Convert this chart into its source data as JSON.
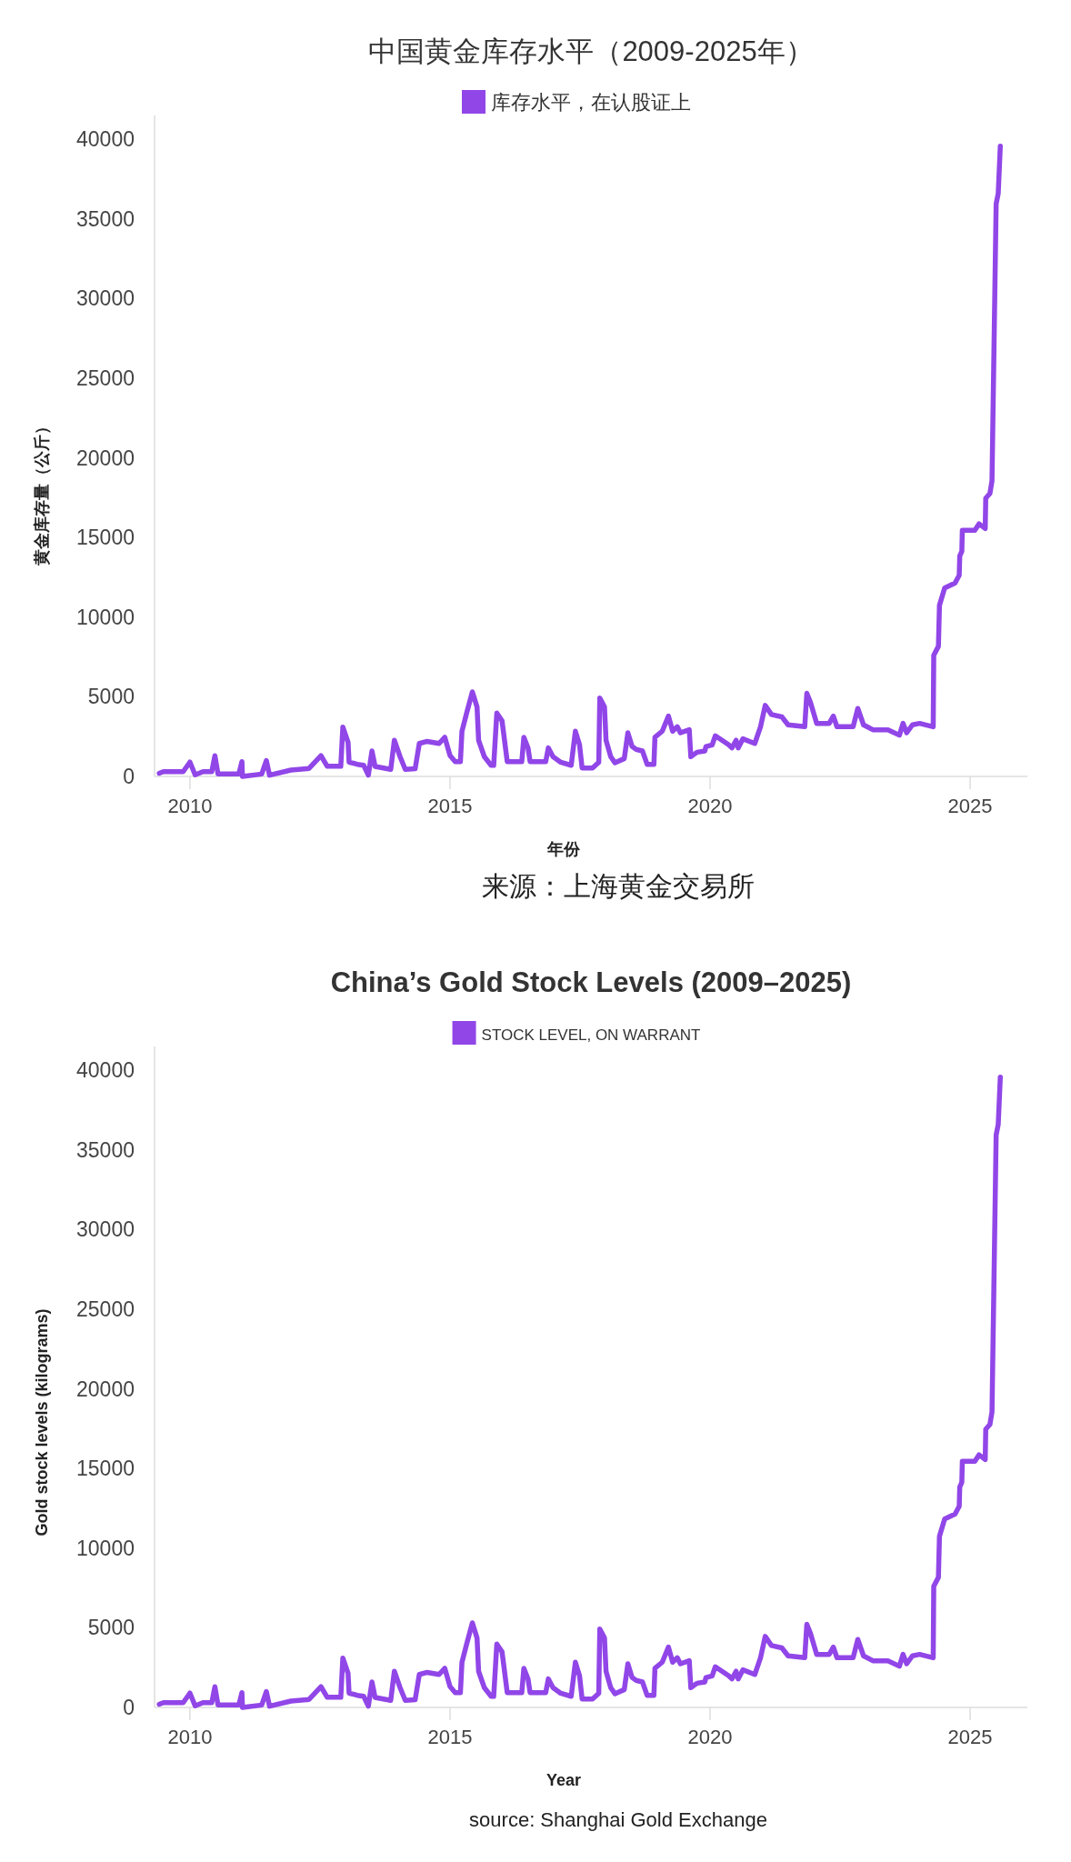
{
  "chart_data": [
    {
      "type": "line",
      "title": "中国黄金库存水平（2009-2025年）",
      "xlabel": "年份",
      "ylabel": "黄金库存量（公斤）",
      "annotations": [
        "来源：上海黄金交易所"
      ],
      "legend": "top",
      "xlim": [
        2009.32,
        2026.1
      ],
      "ylim": [
        0,
        41500
      ],
      "xticks": [
        2010,
        2015,
        2020,
        2025
      ],
      "yticks": [
        0,
        5000,
        10000,
        15000,
        20000,
        25000,
        30000,
        35000,
        40000
      ],
      "series": [
        {
          "name": "库存水平，在认股证上",
          "color": "#9146e8",
          "x": [
            2009.41,
            2009.49,
            2009.87,
            2010.0,
            2010.1,
            2010.25,
            2010.42,
            2010.48,
            2010.54,
            2010.94,
            2011.0,
            2011.01,
            2011.38,
            2011.47,
            2011.53,
            2011.94,
            2012.29,
            2012.52,
            2012.64,
            2012.9,
            2012.94,
            2013.04,
            2013.06,
            2013.22,
            2013.34,
            2013.43,
            2013.5,
            2013.56,
            2013.86,
            2013.93,
            2014.04,
            2014.14,
            2014.33,
            2014.41,
            2014.56,
            2014.79,
            2014.9,
            2015.0,
            2015.1,
            2015.2,
            2015.23,
            2015.32,
            2015.43,
            2015.52,
            2015.55,
            2015.66,
            2015.79,
            2015.84,
            2015.9,
            2016.0,
            2016.1,
            2016.38,
            2016.42,
            2016.5,
            2016.54,
            2016.84,
            2016.89,
            2016.98,
            2017.13,
            2017.33,
            2017.41,
            2017.49,
            2017.54,
            2017.74,
            2017.86,
            2017.88,
            2017.97,
            2018.0,
            2018.09,
            2018.17,
            2018.35,
            2018.42,
            2018.5,
            2018.58,
            2018.7,
            2018.79,
            2018.92,
            2018.94,
            2019.08,
            2019.2,
            2019.28,
            2019.37,
            2019.43,
            2019.6,
            2019.63,
            2019.75,
            2019.9,
            2019.92,
            2020.04,
            2020.1,
            2020.36,
            2020.42,
            2020.5,
            2020.54,
            2020.63,
            2020.86,
            2020.97,
            2021.06,
            2021.18,
            2021.38,
            2021.5,
            2021.82,
            2021.86,
            2021.93,
            2022.05,
            2022.29,
            2022.37,
            2022.44,
            2022.75,
            2022.84,
            2022.95,
            2023.13,
            2023.42,
            2023.64,
            2023.71,
            2023.78,
            2023.89,
            2024.03,
            2024.29,
            2024.3,
            2024.39,
            2024.41,
            2024.51,
            2024.71,
            2024.79,
            2024.8,
            2024.84,
            2024.85,
            2025.09,
            2025.17,
            2025.29,
            2025.3,
            2025.38,
            2025.42,
            2025.5,
            2025.54,
            2025.58
          ],
          "values": [
            200,
            300,
            300,
            900,
            100,
            300,
            300,
            1300,
            150,
            150,
            930,
            0,
            150,
            1000,
            80,
            400,
            500,
            1300,
            640,
            640,
            3100,
            2150,
            900,
            760,
            700,
            80,
            1600,
            630,
            440,
            2270,
            1240,
            440,
            480,
            2070,
            2200,
            2070,
            2460,
            1310,
            930,
            930,
            2840,
            3980,
            5310,
            4360,
            2270,
            1240,
            700,
            700,
            3980,
            3500,
            930,
            930,
            2460,
            1790,
            930,
            930,
            1790,
            1240,
            890,
            700,
            2840,
            2000,
            530,
            530,
            890,
            4930,
            4360,
            2270,
            1240,
            860,
            1120,
            2740,
            1880,
            1700,
            1600,
            760,
            760,
            2460,
            2840,
            3790,
            2840,
            3120,
            2740,
            2930,
            1240,
            1520,
            1600,
            1880,
            1980,
            2550,
            1980,
            1790,
            2270,
            1790,
            2360,
            2070,
            3120,
            4460,
            3890,
            3740,
            3240,
            3120,
            5220,
            4650,
            3330,
            3330,
            3790,
            3120,
            3120,
            4270,
            3240,
            2930,
            2930,
            2590,
            3330,
            2740,
            3240,
            3330,
            3120,
            7600,
            8170,
            10740,
            11830,
            12140,
            12630,
            13840,
            14130,
            15460,
            15460,
            15860,
            15570,
            17470,
            17770,
            18550,
            35940,
            36610,
            39580
          ]
        }
      ]
    },
    {
      "type": "line",
      "title": "China’s Gold Stock Levels (2009–2025)",
      "xlabel": "Year",
      "ylabel": "Gold stock levels (kilograms)",
      "annotations": [
        "source: Shanghai Gold Exchange"
      ],
      "legend": "top",
      "xlim": [
        2009.32,
        2026.1
      ],
      "ylim": [
        0,
        41500
      ],
      "xticks": [
        2010,
        2015,
        2020,
        2025
      ],
      "yticks": [
        0,
        5000,
        10000,
        15000,
        20000,
        25000,
        30000,
        35000,
        40000
      ],
      "series": [
        {
          "name": "STOCK LEVEL, ON WARRANT",
          "color": "#9146e8",
          "x": [
            2009.41,
            2009.49,
            2009.87,
            2010.0,
            2010.1,
            2010.25,
            2010.42,
            2010.48,
            2010.54,
            2010.94,
            2011.0,
            2011.01,
            2011.38,
            2011.47,
            2011.53,
            2011.94,
            2012.29,
            2012.52,
            2012.64,
            2012.9,
            2012.94,
            2013.04,
            2013.06,
            2013.22,
            2013.34,
            2013.43,
            2013.5,
            2013.56,
            2013.86,
            2013.93,
            2014.04,
            2014.14,
            2014.33,
            2014.41,
            2014.56,
            2014.79,
            2014.9,
            2015.0,
            2015.1,
            2015.2,
            2015.23,
            2015.32,
            2015.43,
            2015.52,
            2015.55,
            2015.66,
            2015.79,
            2015.84,
            2015.9,
            2016.0,
            2016.1,
            2016.38,
            2016.42,
            2016.5,
            2016.54,
            2016.84,
            2016.89,
            2016.98,
            2017.13,
            2017.33,
            2017.41,
            2017.49,
            2017.54,
            2017.74,
            2017.86,
            2017.88,
            2017.97,
            2018.0,
            2018.09,
            2018.17,
            2018.35,
            2018.42,
            2018.5,
            2018.58,
            2018.7,
            2018.79,
            2018.92,
            2018.94,
            2019.08,
            2019.2,
            2019.28,
            2019.37,
            2019.43,
            2019.6,
            2019.63,
            2019.75,
            2019.9,
            2019.92,
            2020.04,
            2020.1,
            2020.36,
            2020.42,
            2020.5,
            2020.54,
            2020.63,
            2020.86,
            2020.97,
            2021.06,
            2021.18,
            2021.38,
            2021.5,
            2021.82,
            2021.86,
            2021.93,
            2022.05,
            2022.29,
            2022.37,
            2022.44,
            2022.75,
            2022.84,
            2022.95,
            2023.13,
            2023.42,
            2023.64,
            2023.71,
            2023.78,
            2023.89,
            2024.03,
            2024.29,
            2024.3,
            2024.39,
            2024.41,
            2024.51,
            2024.71,
            2024.79,
            2024.8,
            2024.84,
            2024.85,
            2025.09,
            2025.17,
            2025.29,
            2025.3,
            2025.38,
            2025.42,
            2025.5,
            2025.54,
            2025.58
          ],
          "values": [
            200,
            300,
            300,
            900,
            100,
            300,
            300,
            1300,
            150,
            150,
            930,
            0,
            150,
            1000,
            80,
            400,
            500,
            1300,
            640,
            640,
            3100,
            2150,
            900,
            760,
            700,
            80,
            1600,
            630,
            440,
            2270,
            1240,
            440,
            480,
            2070,
            2200,
            2070,
            2460,
            1310,
            930,
            930,
            2840,
            3980,
            5310,
            4360,
            2270,
            1240,
            700,
            700,
            3980,
            3500,
            930,
            930,
            2460,
            1790,
            930,
            930,
            1790,
            1240,
            890,
            700,
            2840,
            2000,
            530,
            530,
            890,
            4930,
            4360,
            2270,
            1240,
            860,
            1120,
            2740,
            1880,
            1700,
            1600,
            760,
            760,
            2460,
            2840,
            3790,
            2840,
            3120,
            2740,
            2930,
            1240,
            1520,
            1600,
            1880,
            1980,
            2550,
            1980,
            1790,
            2270,
            1790,
            2360,
            2070,
            3120,
            4460,
            3890,
            3740,
            3240,
            3120,
            5220,
            4650,
            3330,
            3330,
            3790,
            3120,
            3120,
            4270,
            3240,
            2930,
            2930,
            2590,
            3330,
            2740,
            3240,
            3330,
            3120,
            7600,
            8170,
            10740,
            11830,
            12140,
            12630,
            13840,
            14130,
            15460,
            15460,
            15860,
            15570,
            17470,
            17770,
            18550,
            35940,
            36610,
            39580
          ]
        }
      ]
    }
  ]
}
